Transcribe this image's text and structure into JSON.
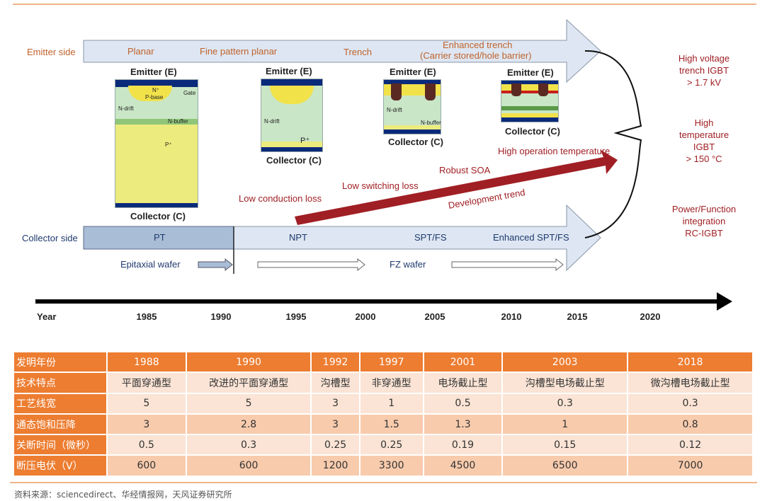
{
  "diagram": {
    "emitter_side_label": "Emitter side",
    "emitter_stages": [
      "Planar",
      "Fine pattern planar",
      "Trench",
      "Enhanced trench",
      "(Carrier stored/hole barrier)"
    ],
    "collector_side_label": "Collector side",
    "collector_stages": [
      "PT",
      "NPT",
      "SPT/FS",
      "Enhanced SPT/FS"
    ],
    "wafers": [
      "Epitaxial wafer",
      "FZ wafer"
    ],
    "devices": {
      "emitter": "Emitter (E)",
      "collector": "Collector (C)",
      "layers": {
        "n_plus": "N⁺",
        "p_base": "P-base",
        "gate": "Gate",
        "n_drift": "N-drift",
        "n_buffer": "N-buffer",
        "p_plus": "P⁺"
      }
    },
    "trend_labels": [
      "Low conduction loss",
      "Low switching loss",
      "Robust SOA",
      "High operation temperature",
      "Development trend"
    ],
    "outcomes": [
      [
        "High voltage",
        "trench IGBT",
        "> 1.7 kV"
      ],
      [
        "High",
        "temperature",
        "IGBT",
        "> 150 °C"
      ],
      [
        "Power/Function",
        "integration",
        "RC-IGBT"
      ]
    ],
    "timeline": {
      "label": "Year",
      "years": [
        "1985",
        "1990",
        "1995",
        "2000",
        "2005",
        "2010",
        "2015",
        "2020"
      ]
    }
  },
  "table": {
    "rows": [
      {
        "label": "发明年份",
        "cells": [
          "1988",
          "1990",
          "1992",
          "1997",
          "2001",
          "2003",
          "2018"
        ]
      },
      {
        "label": "技术特点",
        "cells": [
          "平面穿通型",
          "改进的平面穿通型",
          "沟槽型",
          "非穿通型",
          "电场截止型",
          "沟槽型电场截止型",
          "微沟槽电场截止型"
        ]
      },
      {
        "label": "工艺线宽",
        "cells": [
          "5",
          "5",
          "3",
          "1",
          "0.5",
          "0.3",
          "0.3"
        ]
      },
      {
        "label": "通态饱和压降",
        "cells": [
          "3",
          "2.8",
          "3",
          "1.5",
          "1.3",
          "1",
          "0.8"
        ]
      },
      {
        "label": "关断时间（微秒）",
        "cells": [
          "0.5",
          "0.3",
          "0.25",
          "0.25",
          "0.19",
          "0.15",
          "0.12"
        ]
      },
      {
        "label": "断压电伏（V）",
        "cells": [
          "600",
          "600",
          "1200",
          "3300",
          "4500",
          "6500",
          "7000"
        ]
      }
    ]
  },
  "source": "资料来源：sciencedirect、华经情报网，天风证券研究所",
  "colors": {
    "header": "#ed7d31",
    "row_light": "#fbe4d5",
    "row_mid": "#f8cbad",
    "trend_red": "#a01f24",
    "band": "#dde6f2",
    "pt_band": "#a9bdd6"
  }
}
